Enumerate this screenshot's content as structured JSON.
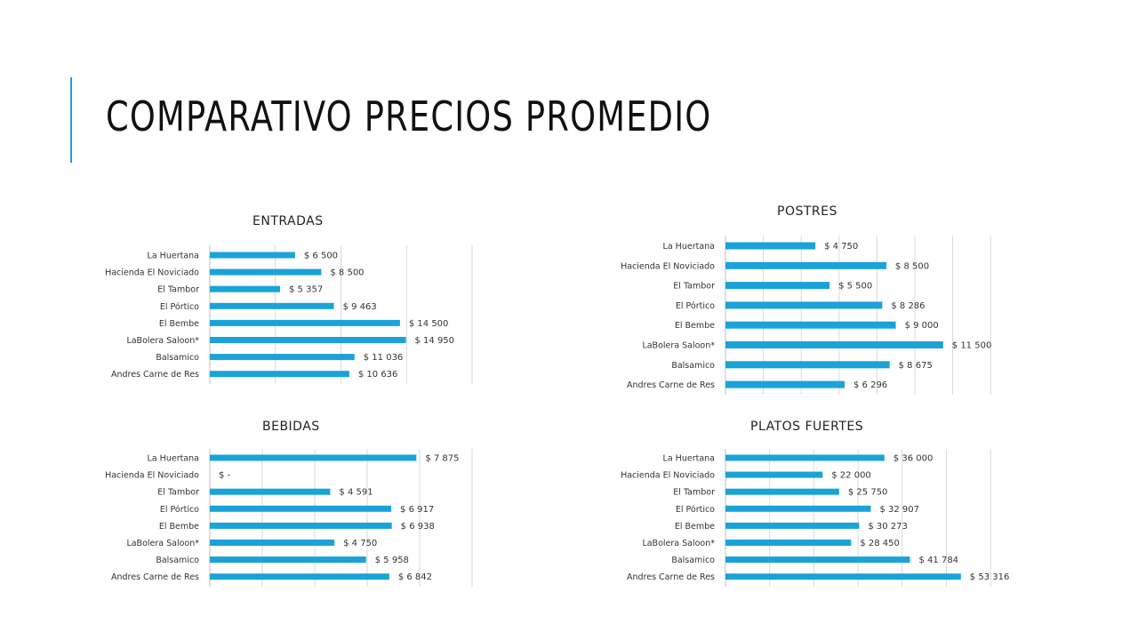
{
  "page": {
    "title": "COMPARATIVO PRECIOS PROMEDIO",
    "accent": "#1aa3d8",
    "bar_color": "#1aa3d8"
  },
  "chart_data": [
    {
      "type": "bar",
      "orientation": "horizontal",
      "title": "ENTRADAS",
      "categories": [
        "La Huertana",
        "Hacienda El Noviciado",
        "El Tambor",
        "El Pórtico",
        "El Bembe",
        "LaBolera Saloon*",
        "Balsamico",
        "Andres Carne de Res"
      ],
      "values": [
        6500,
        8500,
        5357,
        9463,
        14500,
        14950,
        11036,
        10636
      ],
      "labels": [
        "$ 6 500",
        "$ 8 500",
        "$ 5 357",
        "$ 9 463",
        "$ 14 500",
        "$ 14 950",
        "$ 11 036",
        "$ 10 636"
      ],
      "xlim": [
        0,
        20000
      ],
      "grid": true
    },
    {
      "type": "bar",
      "orientation": "horizontal",
      "title": "POSTRES",
      "categories": [
        "La Huertana",
        "Hacienda El Noviciado",
        "El Tambor",
        "El Pórtico",
        "El Bembe",
        "LaBolera Saloon*",
        "Balsamico",
        "Andres Carne de Res"
      ],
      "values": [
        4750,
        8500,
        5500,
        8286,
        9000,
        11500,
        8675,
        6296
      ],
      "labels": [
        "$ 4 750",
        "$ 8 500",
        "$ 5 500",
        "$ 8 286",
        "$ 9 000",
        "$ 11 500",
        "$ 8 675",
        "$ 6 296"
      ],
      "xlim": [
        0,
        14000
      ],
      "grid": true
    },
    {
      "type": "bar",
      "orientation": "horizontal",
      "title": "BEBIDAS",
      "categories": [
        "La Huertana",
        "Hacienda El Noviciado",
        "El Tambor",
        "El Pórtico",
        "El Bembe",
        "LaBolera Saloon*",
        "Balsamico",
        "Andres Carne de Res"
      ],
      "values": [
        7875,
        0,
        4591,
        6917,
        6938,
        4750,
        5958,
        6842
      ],
      "labels": [
        "$ 7 875",
        "$ -",
        "$ 4 591",
        "$ 6 917",
        "$ 6 938",
        "$ 4 750",
        "$ 5 958",
        "$ 6 842"
      ],
      "xlim": [
        0,
        10000
      ],
      "grid": true
    },
    {
      "type": "bar",
      "orientation": "horizontal",
      "title": "PLATOS FUERTES",
      "categories": [
        "La Huertana",
        "Hacienda El Noviciado",
        "El Tambor",
        "El Pórtico",
        "El Bembe",
        "LaBolera Saloon*",
        "Balsamico",
        "Andres Carne de Res"
      ],
      "values": [
        36000,
        22000,
        25750,
        32907,
        30273,
        28450,
        41784,
        53316
      ],
      "labels": [
        "$ 36 000",
        "$ 22 000",
        "$ 25 750",
        "$ 32 907",
        "$ 30 273",
        "$ 28 450",
        "$ 41 784",
        "$ 53 316"
      ],
      "xlim": [
        0,
        60000
      ],
      "grid": true
    }
  ]
}
